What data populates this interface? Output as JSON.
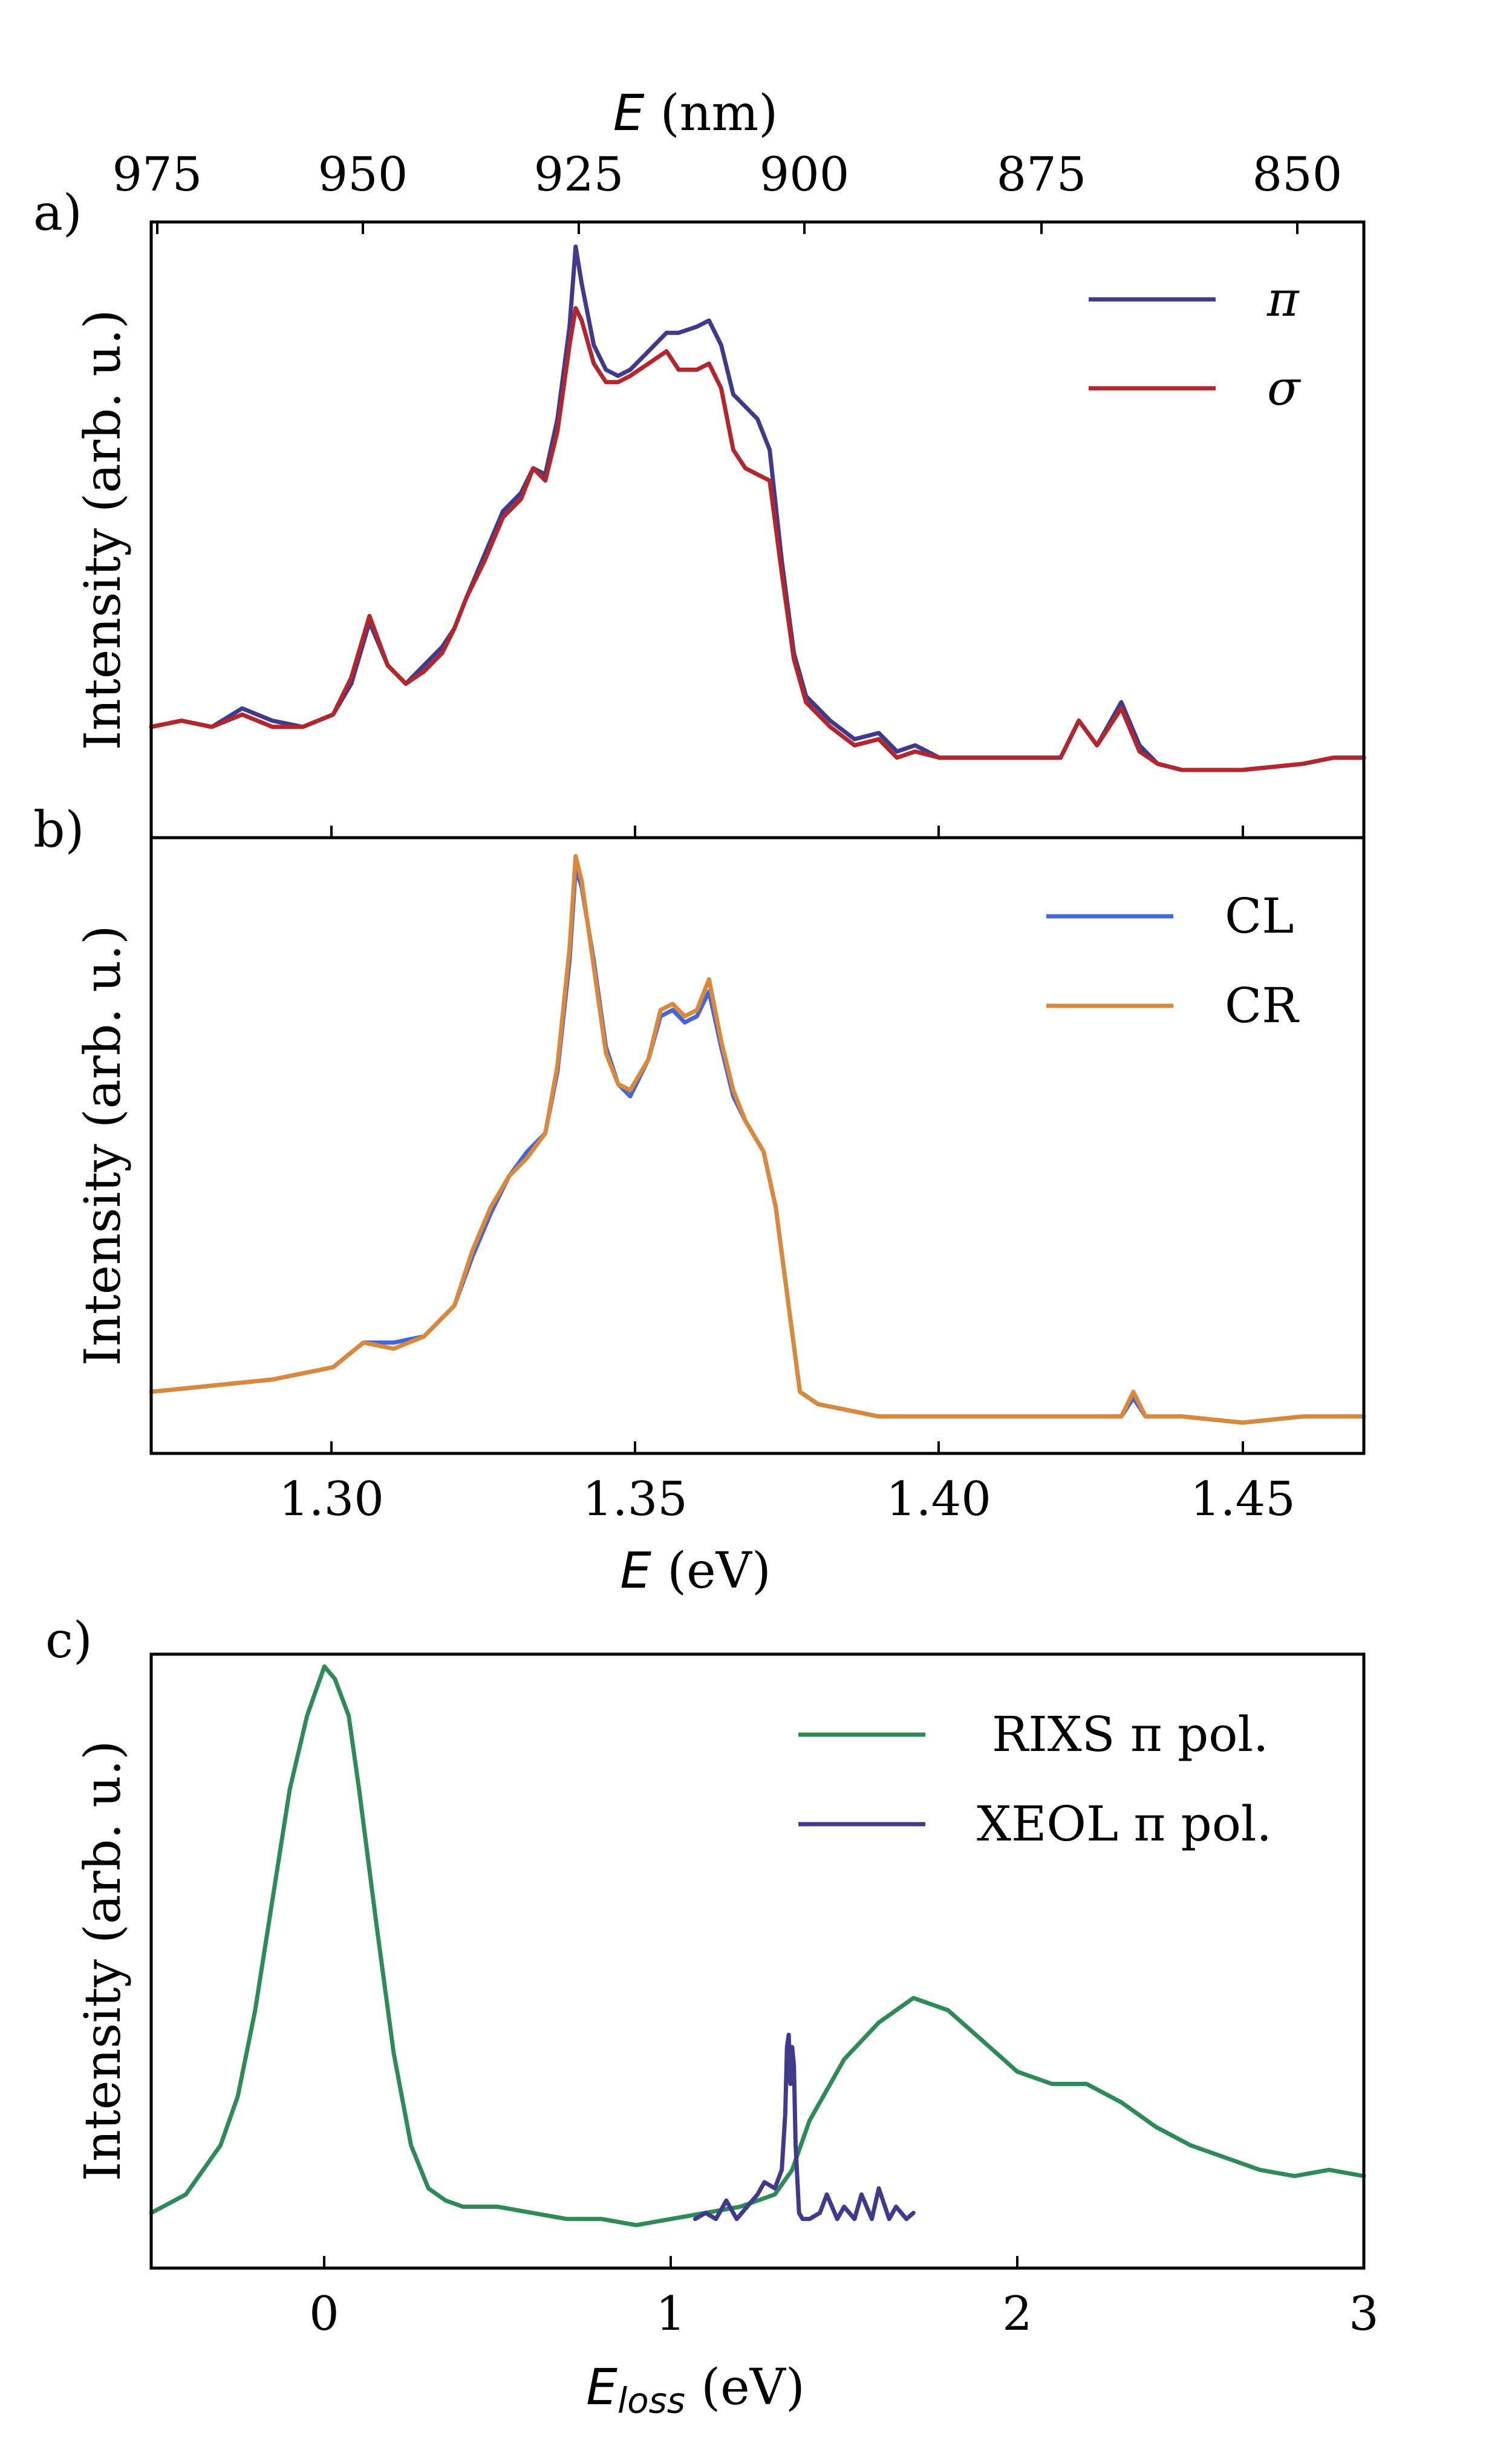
{
  "chart_data": [
    {
      "panel": "a)",
      "type": "line",
      "xlabel_var": "E",
      "xlabel_unit": "(eV)",
      "top_xlabel_var": "E",
      "top_xlabel_unit": "(nm)",
      "ylabel": "Intensity (arb. u.)",
      "xlim": [
        1.27,
        1.47
      ],
      "ylim": [
        0,
        1.0
      ],
      "top_ticks_nm": [
        "975",
        "950",
        "925",
        "900",
        "875",
        "850"
      ],
      "legend": [
        "π",
        "σ"
      ],
      "legend_position": "top-right",
      "series": [
        {
          "name": "π",
          "color": "#3f3a8c",
          "x": [
            1.27,
            1.275,
            1.28,
            1.285,
            1.29,
            1.295,
            1.3,
            1.303,
            1.306,
            1.309,
            1.312,
            1.315,
            1.318,
            1.32,
            1.322,
            1.325,
            1.328,
            1.331,
            1.333,
            1.335,
            1.337,
            1.339,
            1.34,
            1.341,
            1.343,
            1.345,
            1.347,
            1.349,
            1.352,
            1.355,
            1.357,
            1.36,
            1.362,
            1.364,
            1.366,
            1.368,
            1.37,
            1.372,
            1.374,
            1.376,
            1.378,
            1.382,
            1.386,
            1.39,
            1.393,
            1.396,
            1.4,
            1.41,
            1.42,
            1.423,
            1.426,
            1.43,
            1.433,
            1.436,
            1.44,
            1.45,
            1.46,
            1.465,
            1.47
          ],
          "y": [
            0.18,
            0.19,
            0.18,
            0.21,
            0.19,
            0.18,
            0.2,
            0.25,
            0.35,
            0.28,
            0.25,
            0.28,
            0.31,
            0.34,
            0.39,
            0.46,
            0.53,
            0.56,
            0.6,
            0.59,
            0.68,
            0.83,
            0.96,
            0.9,
            0.8,
            0.76,
            0.75,
            0.76,
            0.79,
            0.82,
            0.82,
            0.83,
            0.84,
            0.8,
            0.72,
            0.7,
            0.68,
            0.63,
            0.45,
            0.3,
            0.23,
            0.19,
            0.16,
            0.17,
            0.14,
            0.15,
            0.13,
            0.13,
            0.13,
            0.19,
            0.15,
            0.22,
            0.15,
            0.12,
            0.11,
            0.11,
            0.12,
            0.13,
            0.13
          ]
        },
        {
          "name": "σ",
          "color": "#b2262d",
          "x": [
            1.27,
            1.275,
            1.28,
            1.285,
            1.29,
            1.295,
            1.3,
            1.303,
            1.306,
            1.309,
            1.312,
            1.315,
            1.318,
            1.32,
            1.322,
            1.325,
            1.328,
            1.331,
            1.333,
            1.335,
            1.337,
            1.339,
            1.34,
            1.341,
            1.343,
            1.345,
            1.347,
            1.349,
            1.352,
            1.355,
            1.357,
            1.36,
            1.362,
            1.364,
            1.366,
            1.368,
            1.37,
            1.372,
            1.374,
            1.376,
            1.378,
            1.382,
            1.386,
            1.39,
            1.393,
            1.396,
            1.4,
            1.41,
            1.42,
            1.423,
            1.426,
            1.43,
            1.433,
            1.436,
            1.44,
            1.45,
            1.46,
            1.465,
            1.47
          ],
          "y": [
            0.18,
            0.19,
            0.18,
            0.2,
            0.18,
            0.18,
            0.2,
            0.26,
            0.36,
            0.28,
            0.25,
            0.27,
            0.3,
            0.34,
            0.39,
            0.45,
            0.52,
            0.55,
            0.6,
            0.58,
            0.66,
            0.8,
            0.86,
            0.84,
            0.77,
            0.74,
            0.74,
            0.75,
            0.77,
            0.79,
            0.76,
            0.76,
            0.77,
            0.73,
            0.63,
            0.6,
            0.59,
            0.58,
            0.43,
            0.29,
            0.22,
            0.18,
            0.15,
            0.16,
            0.13,
            0.14,
            0.13,
            0.13,
            0.13,
            0.19,
            0.15,
            0.21,
            0.14,
            0.12,
            0.11,
            0.11,
            0.12,
            0.13,
            0.13
          ]
        }
      ]
    },
    {
      "panel": "b)",
      "type": "line",
      "xlabel_var": "E",
      "xlabel_unit": "(eV)",
      "ylabel": "Intensity (arb. u.)",
      "xlim": [
        1.27,
        1.47
      ],
      "ylim": [
        0,
        1.0
      ],
      "xticks": [
        "1.30",
        "1.35",
        "1.40",
        "1.45"
      ],
      "legend": [
        "CL",
        "CR"
      ],
      "legend_position": "top-right",
      "series": [
        {
          "name": "CL",
          "color": "#4566d6",
          "x": [
            1.27,
            1.28,
            1.29,
            1.3,
            1.305,
            1.31,
            1.315,
            1.32,
            1.323,
            1.326,
            1.329,
            1.332,
            1.335,
            1.337,
            1.339,
            1.34,
            1.341,
            1.343,
            1.345,
            1.347,
            1.349,
            1.352,
            1.354,
            1.356,
            1.358,
            1.36,
            1.362,
            1.364,
            1.366,
            1.368,
            1.371,
            1.373,
            1.375,
            1.377,
            1.38,
            1.385,
            1.39,
            1.4,
            1.41,
            1.42,
            1.43,
            1.432,
            1.434,
            1.44,
            1.45,
            1.46,
            1.47
          ],
          "y": [
            0.1,
            0.11,
            0.12,
            0.14,
            0.18,
            0.18,
            0.19,
            0.24,
            0.32,
            0.39,
            0.45,
            0.49,
            0.52,
            0.62,
            0.8,
            0.95,
            0.92,
            0.8,
            0.66,
            0.6,
            0.58,
            0.64,
            0.71,
            0.72,
            0.7,
            0.71,
            0.75,
            0.66,
            0.58,
            0.54,
            0.49,
            0.4,
            0.25,
            0.1,
            0.08,
            0.07,
            0.06,
            0.06,
            0.06,
            0.06,
            0.06,
            0.09,
            0.06,
            0.06,
            0.05,
            0.06,
            0.06
          ]
        },
        {
          "name": "CR",
          "color": "#d9893b",
          "x": [
            1.27,
            1.28,
            1.29,
            1.3,
            1.305,
            1.31,
            1.315,
            1.32,
            1.323,
            1.326,
            1.329,
            1.332,
            1.335,
            1.337,
            1.339,
            1.34,
            1.341,
            1.343,
            1.345,
            1.347,
            1.349,
            1.352,
            1.354,
            1.356,
            1.358,
            1.36,
            1.362,
            1.364,
            1.366,
            1.368,
            1.371,
            1.373,
            1.375,
            1.377,
            1.38,
            1.385,
            1.39,
            1.4,
            1.41,
            1.42,
            1.43,
            1.432,
            1.434,
            1.44,
            1.45,
            1.46,
            1.47
          ],
          "y": [
            0.1,
            0.11,
            0.12,
            0.14,
            0.18,
            0.17,
            0.19,
            0.24,
            0.33,
            0.4,
            0.45,
            0.48,
            0.52,
            0.63,
            0.82,
            0.97,
            0.93,
            0.79,
            0.65,
            0.6,
            0.59,
            0.64,
            0.72,
            0.73,
            0.71,
            0.72,
            0.77,
            0.67,
            0.59,
            0.54,
            0.49,
            0.4,
            0.25,
            0.1,
            0.08,
            0.07,
            0.06,
            0.06,
            0.06,
            0.06,
            0.06,
            0.1,
            0.06,
            0.06,
            0.05,
            0.06,
            0.06
          ]
        }
      ]
    },
    {
      "panel": "c)",
      "type": "line",
      "xlabel_var": "E",
      "xlabel_sub": "loss",
      "xlabel_unit": "(eV)",
      "ylabel": "Intensity (arb. u.)",
      "xlim": [
        -0.5,
        3.0
      ],
      "ylim": [
        0,
        1.0
      ],
      "xticks": [
        "0",
        "1",
        "2",
        "3"
      ],
      "legend": [
        "RIXS π pol.",
        "XEOL π pol."
      ],
      "legend_position": "top-right",
      "series": [
        {
          "name": "RIXS π pol.",
          "color": "#2e8b57",
          "x": [
            -0.5,
            -0.4,
            -0.3,
            -0.25,
            -0.2,
            -0.15,
            -0.1,
            -0.05,
            0.0,
            0.03,
            0.07,
            0.1,
            0.15,
            0.2,
            0.25,
            0.3,
            0.35,
            0.4,
            0.5,
            0.6,
            0.7,
            0.8,
            0.9,
            1.0,
            1.1,
            1.2,
            1.3,
            1.35,
            1.4,
            1.5,
            1.6,
            1.7,
            1.8,
            1.9,
            2.0,
            2.1,
            2.2,
            2.3,
            2.4,
            2.5,
            2.6,
            2.7,
            2.8,
            2.9,
            3.0
          ],
          "y": [
            0.09,
            0.12,
            0.2,
            0.28,
            0.42,
            0.6,
            0.78,
            0.9,
            0.98,
            0.96,
            0.9,
            0.78,
            0.56,
            0.35,
            0.2,
            0.13,
            0.11,
            0.1,
            0.1,
            0.09,
            0.08,
            0.08,
            0.07,
            0.08,
            0.09,
            0.1,
            0.12,
            0.16,
            0.24,
            0.34,
            0.4,
            0.44,
            0.42,
            0.37,
            0.32,
            0.3,
            0.3,
            0.27,
            0.23,
            0.2,
            0.18,
            0.16,
            0.15,
            0.16,
            0.15
          ]
        },
        {
          "name": "XEOL π pol.",
          "color": "#3f3a8c",
          "x": [
            1.07,
            1.1,
            1.13,
            1.16,
            1.19,
            1.22,
            1.25,
            1.27,
            1.3,
            1.32,
            1.33,
            1.335,
            1.34,
            1.345,
            1.35,
            1.355,
            1.36,
            1.37,
            1.38,
            1.4,
            1.43,
            1.45,
            1.48,
            1.5,
            1.53,
            1.55,
            1.58,
            1.6,
            1.63,
            1.65,
            1.68,
            1.7
          ],
          "y": [
            0.08,
            0.09,
            0.08,
            0.11,
            0.08,
            0.1,
            0.12,
            0.14,
            0.13,
            0.16,
            0.25,
            0.36,
            0.38,
            0.3,
            0.36,
            0.33,
            0.2,
            0.09,
            0.08,
            0.08,
            0.09,
            0.12,
            0.08,
            0.1,
            0.08,
            0.12,
            0.08,
            0.13,
            0.08,
            0.1,
            0.08,
            0.09
          ]
        }
      ]
    }
  ]
}
